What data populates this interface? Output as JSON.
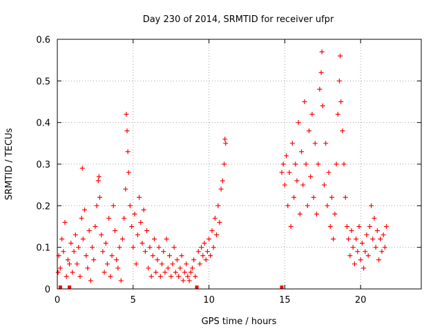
{
  "chart_data": {
    "type": "scatter",
    "title": "Day 230 of 2014, SRMTID for receiver ufpr",
    "xlabel": "GPS time / hours",
    "ylabel": "SRMTID / TECUs",
    "xlim": [
      0,
      24
    ],
    "ylim": [
      0,
      0.6
    ],
    "x_ticks": [
      0,
      5,
      10,
      15,
      20
    ],
    "x_tick_labels": [
      "0",
      "5",
      "10",
      "15",
      "20"
    ],
    "y_ticks": [
      0,
      0.1,
      0.2,
      0.3,
      0.4,
      0.5,
      0.6
    ],
    "y_tick_labels": [
      "0",
      "0.1",
      "0.2",
      "0.3",
      "0.4",
      "0.5",
      "0.6"
    ],
    "grid": true,
    "marker": "plus",
    "series_color": "#ff0000",
    "zero_markers_x": [
      0.2,
      0.8,
      9.2,
      14.8
    ],
    "series": [
      {
        "name": "SRMTID",
        "points": [
          [
            0.05,
            0.04
          ],
          [
            0.1,
            0.08
          ],
          [
            0.2,
            0.05
          ],
          [
            0.3,
            0.12
          ],
          [
            0.4,
            0.09
          ],
          [
            0.5,
            0.16
          ],
          [
            0.6,
            0.03
          ],
          [
            0.7,
            0.07
          ],
          [
            0.8,
            0.06
          ],
          [
            0.9,
            0.11
          ],
          [
            1.0,
            0.04
          ],
          [
            1.1,
            0.09
          ],
          [
            1.2,
            0.13
          ],
          [
            1.3,
            0.06
          ],
          [
            1.4,
            0.1
          ],
          [
            1.5,
            0.03
          ],
          [
            1.6,
            0.17
          ],
          [
            1.65,
            0.29
          ],
          [
            1.7,
            0.12
          ],
          [
            1.8,
            0.19
          ],
          [
            1.9,
            0.08
          ],
          [
            2.0,
            0.05
          ],
          [
            2.1,
            0.14
          ],
          [
            2.2,
            0.02
          ],
          [
            2.3,
            0.1
          ],
          [
            2.4,
            0.07
          ],
          [
            2.5,
            0.15
          ],
          [
            2.6,
            0.2
          ],
          [
            2.7,
            0.26
          ],
          [
            2.75,
            0.27
          ],
          [
            2.8,
            0.22
          ],
          [
            2.9,
            0.13
          ],
          [
            3.0,
            0.09
          ],
          [
            3.1,
            0.04
          ],
          [
            3.2,
            0.11
          ],
          [
            3.3,
            0.06
          ],
          [
            3.4,
            0.17
          ],
          [
            3.5,
            0.03
          ],
          [
            3.6,
            0.08
          ],
          [
            3.7,
            0.2
          ],
          [
            3.8,
            0.14
          ],
          [
            3.9,
            0.07
          ],
          [
            4.0,
            0.05
          ],
          [
            4.1,
            0.1
          ],
          [
            4.2,
            0.02
          ],
          [
            4.3,
            0.12
          ],
          [
            4.4,
            0.17
          ],
          [
            4.5,
            0.24
          ],
          [
            4.55,
            0.42
          ],
          [
            4.6,
            0.38
          ],
          [
            4.65,
            0.33
          ],
          [
            4.7,
            0.28
          ],
          [
            4.8,
            0.2
          ],
          [
            4.9,
            0.15
          ],
          [
            5.0,
            0.1
          ],
          [
            5.1,
            0.18
          ],
          [
            5.2,
            0.06
          ],
          [
            5.3,
            0.13
          ],
          [
            5.4,
            0.22
          ],
          [
            5.5,
            0.16
          ],
          [
            5.6,
            0.11
          ],
          [
            5.7,
            0.19
          ],
          [
            5.8,
            0.09
          ],
          [
            5.9,
            0.14
          ],
          [
            6.0,
            0.05
          ],
          [
            6.1,
            0.1
          ],
          [
            6.2,
            0.03
          ],
          [
            6.3,
            0.08
          ],
          [
            6.4,
            0.12
          ],
          [
            6.5,
            0.04
          ],
          [
            6.6,
            0.07
          ],
          [
            6.7,
            0.1
          ],
          [
            6.8,
            0.03
          ],
          [
            6.9,
            0.06
          ],
          [
            7.0,
            0.09
          ],
          [
            7.1,
            0.04
          ],
          [
            7.2,
            0.12
          ],
          [
            7.3,
            0.05
          ],
          [
            7.4,
            0.08
          ],
          [
            7.5,
            0.03
          ],
          [
            7.6,
            0.06
          ],
          [
            7.7,
            0.1
          ],
          [
            7.8,
            0.04
          ],
          [
            7.9,
            0.07
          ],
          [
            8.0,
            0.03
          ],
          [
            8.1,
            0.05
          ],
          [
            8.2,
            0.08
          ],
          [
            8.3,
            0.02
          ],
          [
            8.4,
            0.04
          ],
          [
            8.5,
            0.06
          ],
          [
            8.6,
            0.03
          ],
          [
            8.7,
            0.02
          ],
          [
            8.8,
            0.04
          ],
          [
            8.9,
            0.05
          ],
          [
            9.0,
            0.07
          ],
          [
            9.1,
            0.03
          ],
          [
            9.3,
            0.09
          ],
          [
            9.4,
            0.06
          ],
          [
            9.5,
            0.1
          ],
          [
            9.6,
            0.08
          ],
          [
            9.7,
            0.11
          ],
          [
            9.8,
            0.07
          ],
          [
            9.9,
            0.09
          ],
          [
            10.0,
            0.12
          ],
          [
            10.1,
            0.08
          ],
          [
            10.2,
            0.14
          ],
          [
            10.3,
            0.1
          ],
          [
            10.4,
            0.17
          ],
          [
            10.5,
            0.13
          ],
          [
            10.6,
            0.2
          ],
          [
            10.7,
            0.16
          ],
          [
            10.8,
            0.24
          ],
          [
            10.9,
            0.26
          ],
          [
            11.0,
            0.3
          ],
          [
            11.05,
            0.36
          ],
          [
            11.1,
            0.35
          ],
          [
            14.8,
            0.28
          ],
          [
            14.9,
            0.3
          ],
          [
            15.0,
            0.25
          ],
          [
            15.1,
            0.32
          ],
          [
            15.2,
            0.2
          ],
          [
            15.3,
            0.28
          ],
          [
            15.4,
            0.15
          ],
          [
            15.5,
            0.35
          ],
          [
            15.6,
            0.22
          ],
          [
            15.7,
            0.3
          ],
          [
            15.8,
            0.26
          ],
          [
            15.9,
            0.4
          ],
          [
            16.0,
            0.18
          ],
          [
            16.1,
            0.33
          ],
          [
            16.2,
            0.25
          ],
          [
            16.3,
            0.45
          ],
          [
            16.4,
            0.3
          ],
          [
            16.5,
            0.2
          ],
          [
            16.6,
            0.38
          ],
          [
            16.7,
            0.27
          ],
          [
            16.8,
            0.42
          ],
          [
            16.9,
            0.22
          ],
          [
            17.0,
            0.35
          ],
          [
            17.1,
            0.18
          ],
          [
            17.2,
            0.3
          ],
          [
            17.3,
            0.48
          ],
          [
            17.4,
            0.52
          ],
          [
            17.45,
            0.57
          ],
          [
            17.5,
            0.44
          ],
          [
            17.6,
            0.25
          ],
          [
            17.7,
            0.35
          ],
          [
            17.8,
            0.2
          ],
          [
            17.9,
            0.28
          ],
          [
            18.0,
            0.15
          ],
          [
            18.1,
            0.22
          ],
          [
            18.2,
            0.12
          ],
          [
            18.3,
            0.18
          ],
          [
            18.4,
            0.3
          ],
          [
            18.5,
            0.42
          ],
          [
            18.6,
            0.5
          ],
          [
            18.65,
            0.56
          ],
          [
            18.7,
            0.45
          ],
          [
            18.8,
            0.38
          ],
          [
            18.9,
            0.3
          ],
          [
            19.0,
            0.22
          ],
          [
            19.1,
            0.15
          ],
          [
            19.2,
            0.12
          ],
          [
            19.3,
            0.08
          ],
          [
            19.4,
            0.14
          ],
          [
            19.5,
            0.1
          ],
          [
            19.6,
            0.06
          ],
          [
            19.7,
            0.12
          ],
          [
            19.8,
            0.09
          ],
          [
            19.9,
            0.15
          ],
          [
            20.0,
            0.07
          ],
          [
            20.1,
            0.11
          ],
          [
            20.2,
            0.05
          ],
          [
            20.3,
            0.09
          ],
          [
            20.4,
            0.13
          ],
          [
            20.5,
            0.08
          ],
          [
            20.6,
            0.15
          ],
          [
            20.7,
            0.2
          ],
          [
            20.8,
            0.12
          ],
          [
            20.9,
            0.17
          ],
          [
            21.0,
            0.1
          ],
          [
            21.1,
            0.14
          ],
          [
            21.2,
            0.07
          ],
          [
            21.3,
            0.12
          ],
          [
            21.4,
            0.09
          ],
          [
            21.5,
            0.13
          ],
          [
            21.6,
            0.1
          ],
          [
            21.7,
            0.15
          ]
        ]
      }
    ]
  }
}
